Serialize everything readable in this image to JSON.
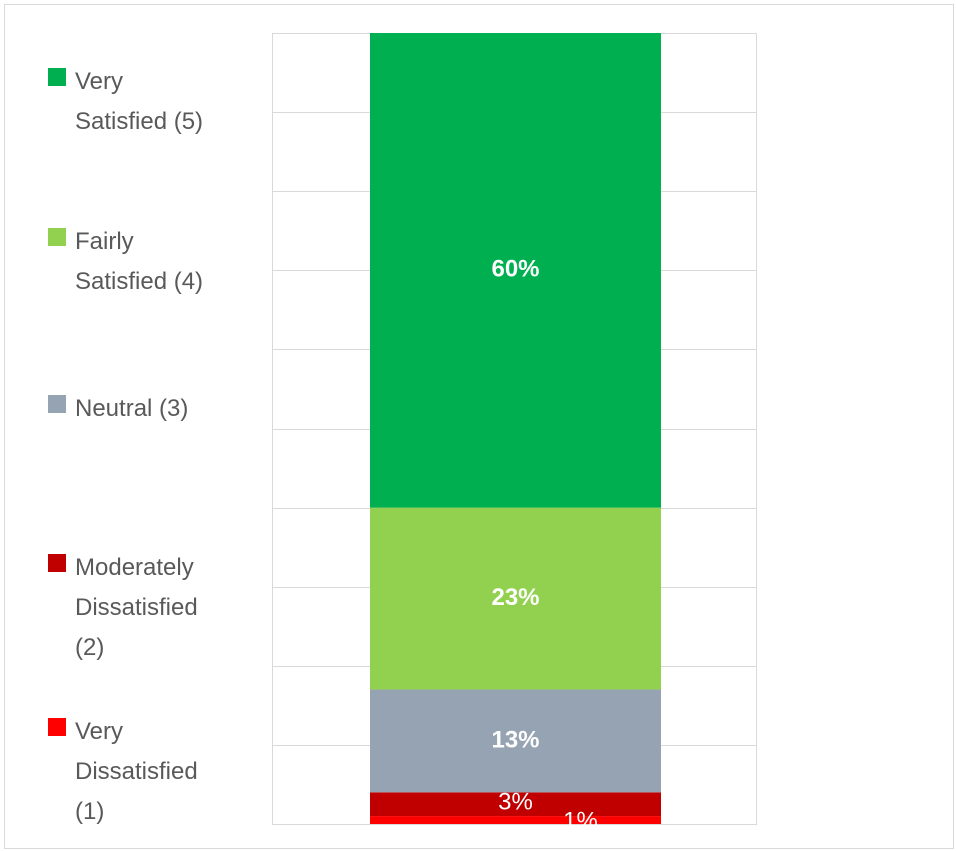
{
  "chart_data": {
    "type": "bar",
    "stacked": true,
    "percent": true,
    "categories": [
      ""
    ],
    "ylim": [
      0,
      100
    ],
    "grid": true,
    "legend_position": "left",
    "series": [
      {
        "name": "Very Dissatisfied (1)",
        "values": [
          1
        ],
        "label": "1%",
        "color": "#ff0000"
      },
      {
        "name": "Moderately Dissatisfied (2)",
        "values": [
          3
        ],
        "label": "3%",
        "color": "#c00000"
      },
      {
        "name": "Neutral (3)",
        "values": [
          13
        ],
        "label": "13%",
        "color": "#96a3b3"
      },
      {
        "name": "Fairly Satisfied (4)",
        "values": [
          23
        ],
        "label": "23%",
        "color": "#92d050"
      },
      {
        "name": "Very Satisfied (5)",
        "values": [
          60
        ],
        "label": "60%",
        "color": "#00b050"
      }
    ]
  },
  "legend": {
    "items": [
      {
        "lines": [
          "Very",
          "Satisfied (5)"
        ],
        "color": "#00b050"
      },
      {
        "lines": [
          "Fairly",
          "Satisfied (4)"
        ],
        "color": "#92d050"
      },
      {
        "lines": [
          "Neutral (3)"
        ],
        "color": "#96a3b3"
      },
      {
        "lines": [
          "Moderately",
          "Dissatisfied",
          "(2)"
        ],
        "color": "#c00000"
      },
      {
        "lines": [
          "Very",
          "Dissatisfied",
          "(1)"
        ],
        "color": "#ff0000"
      }
    ]
  },
  "colors": {
    "gridline": "#d9d9d9",
    "legend_text": "#595959",
    "label_text": "#ffffff"
  }
}
